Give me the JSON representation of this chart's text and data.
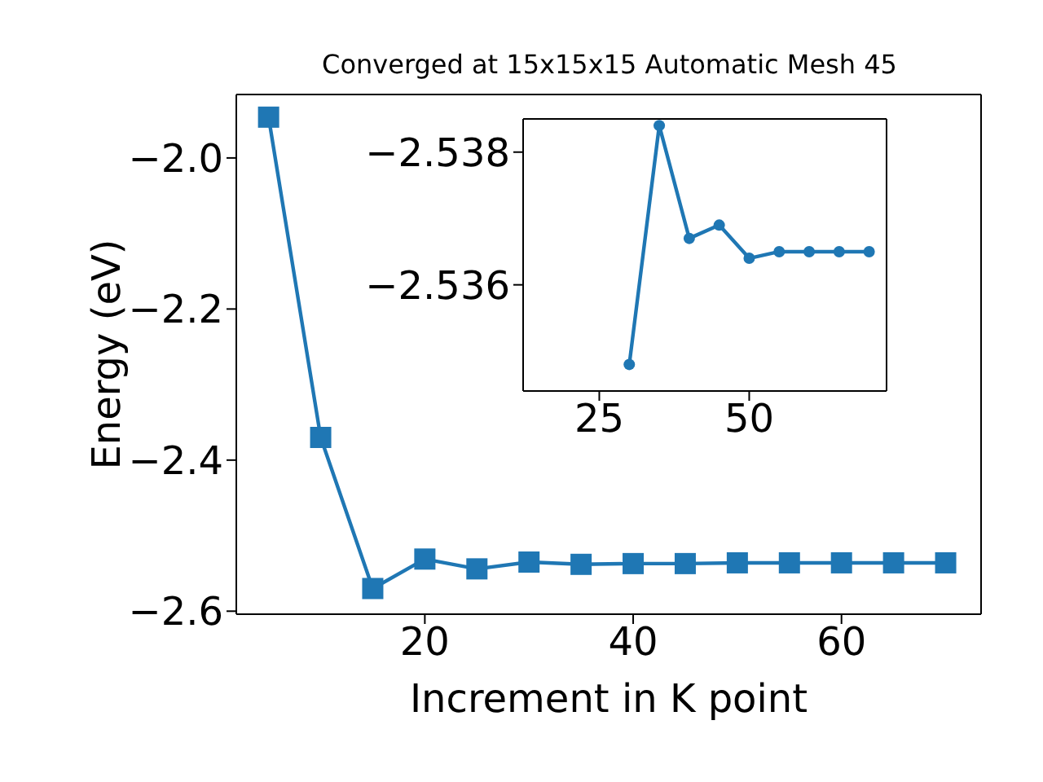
{
  "chart_data": [
    {
      "type": "line",
      "title": "Converged at 15x15x15 Automatic Mesh 45",
      "xlabel": "Increment in K point",
      "ylabel": "Energy (eV)",
      "x": [
        5,
        10,
        15,
        20,
        25,
        30,
        35,
        40,
        45,
        50,
        55,
        60,
        65,
        70
      ],
      "series": [
        {
          "color": "#1f77b4",
          "values": [
            -1.946,
            -2.37,
            -2.57,
            -2.531,
            -2.544,
            -2.535,
            -2.538,
            -2.537,
            -2.537,
            -2.536,
            -2.536,
            -2.536,
            -2.536,
            -2.536
          ]
        }
      ],
      "xlim": [
        1.9,
        73.4
      ],
      "ylim": [
        -2.604,
        -1.916
      ],
      "xticks": [
        20,
        40,
        60
      ],
      "yticks": [
        {
          "value": -2.6,
          "label": "−2.6"
        },
        {
          "value": -2.4,
          "label": "−2.4"
        },
        {
          "value": -2.2,
          "label": "−2.2"
        },
        {
          "value": -2.0,
          "label": "−2.0"
        }
      ],
      "grid": false,
      "legend": false,
      "marker": "square",
      "line_style": "solid"
    },
    {
      "type": "line",
      "x": [
        30,
        35,
        40,
        45,
        50,
        55,
        60,
        65,
        70
      ],
      "series": [
        {
          "color": "#1f77b4",
          "values": [
            -2.5348,
            -2.5384,
            -2.5367,
            -2.5369,
            -2.5364,
            -2.5365,
            -2.5365,
            -2.5365,
            -2.5365
          ]
        }
      ],
      "xlim": [
        12.3,
        72.9
      ],
      "ylim": [
        -2.5344,
        -2.5385
      ],
      "xticks": [
        25,
        50
      ],
      "yticks": [
        {
          "value": -2.538,
          "label": "−2.538"
        },
        {
          "value": -2.536,
          "label": "−2.536"
        }
      ],
      "grid": false,
      "legend": false,
      "marker": "circle",
      "line_style": "solid"
    }
  ]
}
